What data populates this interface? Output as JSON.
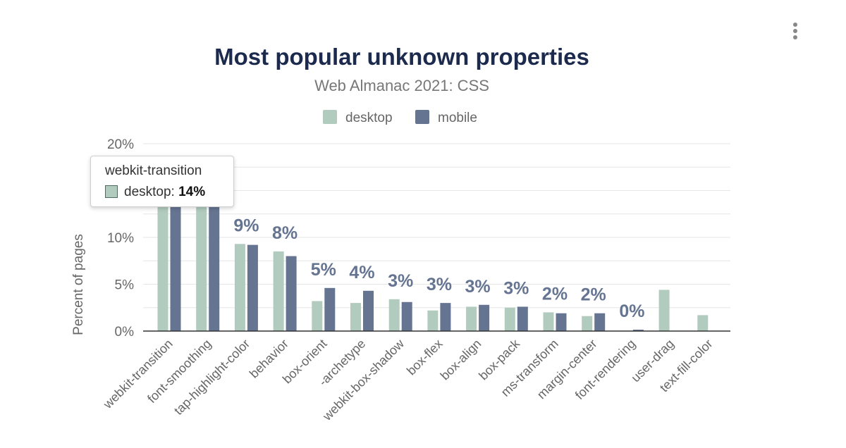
{
  "colors": {
    "desktop": "#b1cbbe",
    "mobile": "#657491",
    "title": "#1c2a4d",
    "subtitle": "#777777",
    "axis_text": "#666666",
    "data_label": "#657491",
    "grid": "#e6e6e6"
  },
  "menu": {
    "icon": "more-vertical-icon"
  },
  "chart_data": {
    "type": "bar",
    "title": "Most popular unknown properties",
    "subtitle": "Web Almanac 2021: CSS",
    "xlabel": "",
    "ylabel": "Percent of pages",
    "ylim": [
      0,
      20
    ],
    "yticks": [
      0,
      5,
      10,
      20
    ],
    "ytick_labels": [
      "0%",
      "5%",
      "10%",
      "20%"
    ],
    "grid": true,
    "legend_position": "top-center",
    "categories": [
      "webkit-transition",
      "font-smoothing",
      "tap-highlight-color",
      "behavior",
      "box-orient",
      "-archetype",
      "webkit-box-shadow",
      "box-flex",
      "box-align",
      "box-pack",
      "ms-transform",
      "margin-center",
      "font-rendering",
      "user-drag",
      "text-fill-color"
    ],
    "series": [
      {
        "name": "desktop",
        "values": [
          14.0,
          14.0,
          9.3,
          8.5,
          3.2,
          3.0,
          3.4,
          2.2,
          2.6,
          2.5,
          2.0,
          1.6,
          0.05,
          4.4,
          1.7
        ]
      },
      {
        "name": "mobile",
        "values": [
          14.1,
          14.1,
          9.2,
          8.0,
          4.6,
          4.3,
          3.1,
          3.0,
          2.8,
          2.6,
          1.9,
          1.9,
          0.15,
          0.0,
          0.0
        ]
      }
    ],
    "data_labels": [
      null,
      null,
      "9%",
      "8%",
      "5%",
      "4%",
      "3%",
      "3%",
      "3%",
      "3%",
      "2%",
      "2%",
      "0%",
      null,
      null
    ],
    "tooltip": {
      "category": "webkit-transition",
      "series": "desktop",
      "series_label": "desktop",
      "value_label": "14%"
    }
  }
}
